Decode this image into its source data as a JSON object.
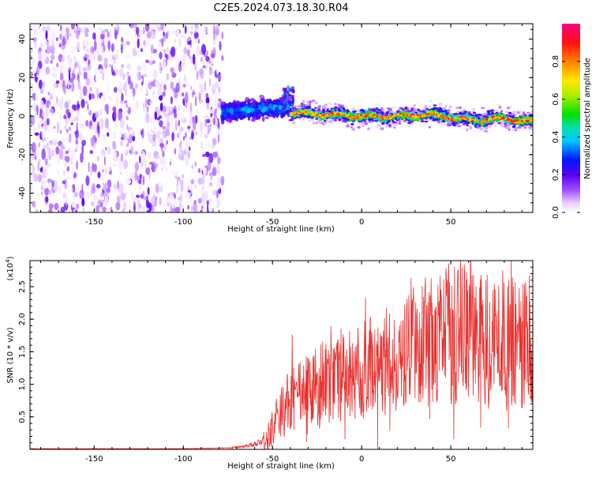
{
  "title": "C2E5.2024.073.18.30.R04",
  "chart_data": [
    {
      "type": "heatmap",
      "xlabel": "Height of straight line (km)",
      "ylabel": "Frequency (Hz)",
      "xlim": [
        -186,
        96
      ],
      "ylim": [
        -50,
        48
      ],
      "xticks": [
        -150,
        -100,
        -50,
        0,
        50
      ],
      "yticks": [
        -40,
        -20,
        0,
        20,
        40
      ],
      "colorbar": {
        "label": "Normalized spectral amplitude",
        "range": [
          0,
          1
        ],
        "ticks": [
          0.0,
          0.2,
          0.4,
          0.6,
          0.8
        ],
        "tick_labels": [
          "0.0",
          "0.2",
          "0.4",
          "0.6",
          "0.8"
        ]
      },
      "regions": [
        {
          "x": [
            -186,
            -78
          ],
          "freq_band": [
            -50,
            48
          ],
          "amplitude": [
            0.0,
            0.15
          ],
          "description": "noise"
        },
        {
          "x": [
            -78,
            -40
          ],
          "freq_center": [
            2,
            5
          ],
          "freq_halfwidth": 4,
          "amplitude": [
            0.1,
            0.45
          ]
        },
        {
          "x": [
            -40,
            96
          ],
          "freq_center_km": [
            -40,
            -20,
            0,
            20,
            40,
            60,
            80,
            96
          ],
          "freq_center_hz": [
            2,
            1,
            0,
            0,
            1,
            -2,
            -1,
            -3
          ],
          "amplitude": [
            0.3,
            0.95
          ]
        }
      ]
    },
    {
      "type": "line",
      "xlabel": "Height of straight line (km)",
      "ylabel": "SNR (10 * v/v)",
      "y_multiplier": "(x10",
      "y_multiplier_exp": "4",
      "y_multiplier_close": ")",
      "xlim": [
        -186,
        96
      ],
      "ylim": [
        0,
        2.9
      ],
      "xticks": [
        -150,
        -100,
        -50,
        0,
        50
      ],
      "yticks": [
        0.5,
        1.0,
        1.5,
        2.0,
        2.5
      ],
      "color": "#e8302e",
      "series": [
        {
          "x": [
            -186,
            -150,
            -100,
            -80,
            -70,
            -60,
            -55,
            -50,
            -45,
            -40,
            -35,
            -30,
            -20,
            -10,
            0,
            10,
            20,
            30,
            40,
            50,
            60,
            70,
            80,
            90,
            96
          ],
          "y": [
            0.01,
            0.01,
            0.01,
            0.02,
            0.03,
            0.08,
            0.15,
            0.35,
            0.6,
            0.75,
            0.8,
            0.9,
            1.0,
            1.1,
            1.2,
            1.3,
            1.45,
            1.6,
            1.7,
            1.75,
            1.75,
            1.7,
            1.75,
            1.6,
            1.7
          ]
        }
      ]
    }
  ]
}
